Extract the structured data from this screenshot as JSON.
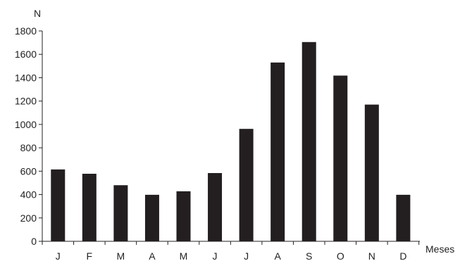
{
  "chart_data": {
    "type": "bar",
    "title": "",
    "ylabel": "N",
    "xlabel": "Meses",
    "categories": [
      "J",
      "F",
      "M",
      "A",
      "M",
      "J",
      "J",
      "A",
      "S",
      "O",
      "N",
      "D"
    ],
    "values": [
      615,
      578,
      480,
      398,
      428,
      584,
      962,
      1530,
      1705,
      1418,
      1170,
      398
    ],
    "ylim": [
      0,
      1800
    ],
    "yticks": [
      0,
      200,
      400,
      600,
      800,
      1000,
      1200,
      1400,
      1600,
      1800
    ],
    "grid": false,
    "bar_color": "#231f20",
    "axis_color": "#231f20"
  }
}
